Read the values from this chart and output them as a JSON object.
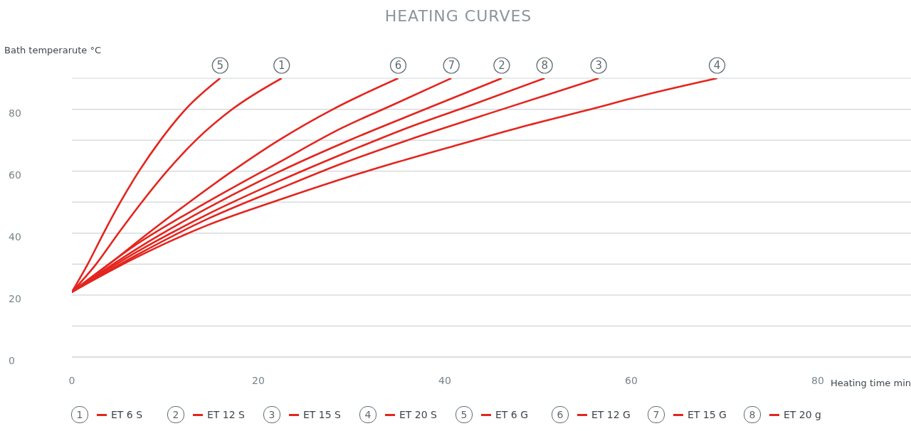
{
  "chart_data": {
    "type": "line",
    "title": "HEATING CURVES",
    "ylabel": "Bath temperarute °C",
    "xlabel": "Heating time min",
    "xlim": [
      0,
      90
    ],
    "xticks": [
      0,
      20,
      40,
      60,
      80
    ],
    "ylim": [
      0,
      90
    ],
    "yticks": [
      0,
      {
        "value": 10,
        "label": null
      },
      20,
      {
        "value": 30,
        "label": null
      },
      40,
      {
        "value": 50,
        "label": null
      },
      60,
      {
        "value": 70,
        "label": null
      },
      80,
      {
        "value": 90,
        "label": null
      }
    ],
    "grid": "y",
    "legend": "bottom",
    "marker": "none",
    "line_style": "solid",
    "series": [
      {
        "name": "ET 6 S",
        "color": "#e3261f",
        "x": [
          0,
          2.6,
          5,
          7.5,
          10.2,
          13.3,
          17.2,
          22.5
        ],
        "values": [
          21,
          30,
          40,
          50,
          60,
          70,
          80,
          90
        ]
      },
      {
        "name": "ET 12 S",
        "color": "#e3261f",
        "x": [
          0,
          7,
          14.5,
          22,
          29,
          37.9,
          46.1
        ],
        "values": [
          21,
          35,
          48,
          59.5,
          69,
          80,
          90
        ]
      },
      {
        "name": "ET 15 S",
        "color": "#e3261f",
        "x": [
          0,
          7,
          14.5,
          22,
          29,
          36,
          46.7,
          56.5
        ],
        "values": [
          21,
          33,
          44.5,
          54,
          62.5,
          70,
          80.5,
          90
        ]
      },
      {
        "name": "ET 20 S",
        "color": "#e3261f",
        "x": [
          0,
          6.8,
          14.5,
          22,
          29,
          35,
          42,
          48.5,
          55,
          62,
          69.2
        ],
        "values": [
          21,
          32,
          42.5,
          50.5,
          57.5,
          63,
          69,
          74.5,
          79.5,
          85,
          90
        ]
      },
      {
        "name": "ET 6 G",
        "color": "#e3261f",
        "x": [
          0,
          1.7,
          3.4,
          5.2,
          7.2,
          9.5,
          12.2,
          15.9
        ],
        "values": [
          21,
          30,
          40,
          50,
          60,
          70,
          80,
          90
        ]
      },
      {
        "name": "ET 12 G",
        "color": "#e3261f",
        "x": [
          0,
          4,
          8.2,
          12.6,
          17.2,
          22.2,
          28,
          35
        ],
        "values": [
          21,
          30,
          40,
          50,
          60,
          70,
          80,
          90
        ]
      },
      {
        "name": "ET 15 G",
        "color": "#e3261f",
        "x": [
          0,
          7,
          14.5,
          22,
          29,
          34.5,
          40.7
        ],
        "values": [
          21,
          36.5,
          50,
          62.5,
          74,
          81.5,
          90
        ]
      },
      {
        "name": "ET 20 g",
        "color": "#e3261f",
        "x": [
          0,
          7,
          14.5,
          22,
          29,
          36,
          43,
          50.7
        ],
        "values": [
          21,
          34,
          46,
          56.5,
          65.5,
          74,
          81.5,
          90
        ]
      }
    ],
    "annotations": [
      {
        "text": "1",
        "x": 22.5,
        "y": 90
      },
      {
        "text": "2",
        "x": 46.1,
        "y": 90
      },
      {
        "text": "3",
        "x": 56.5,
        "y": 90
      },
      {
        "text": "4",
        "x": 69.2,
        "y": 90
      },
      {
        "text": "5",
        "x": 15.9,
        "y": 90
      },
      {
        "text": "6",
        "x": 35,
        "y": 90
      },
      {
        "text": "7",
        "x": 40.7,
        "y": 90
      },
      {
        "text": "8",
        "x": 50.7,
        "y": 90
      }
    ]
  }
}
